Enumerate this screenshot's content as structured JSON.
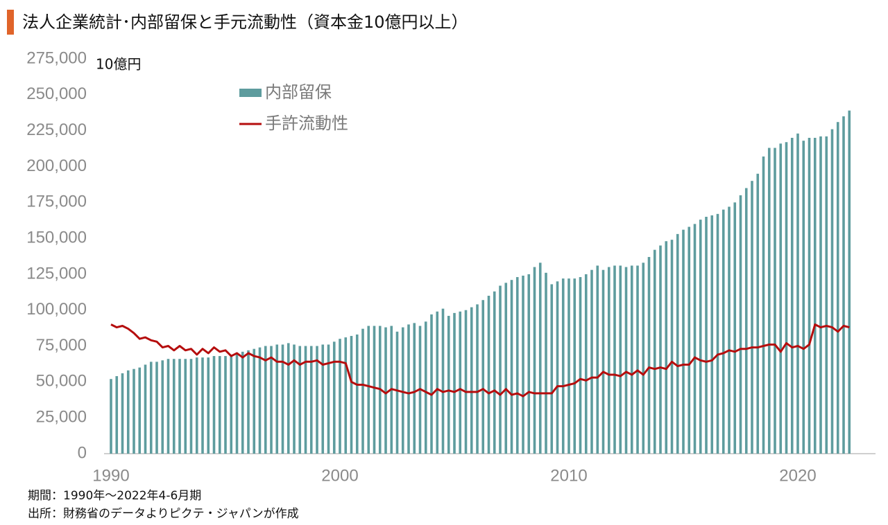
{
  "chart_data": {
    "type": "bar_line",
    "title": "法人企業統計･内部留保と手元流動性（資本金10億円以上）",
    "unit_label": "10億円",
    "notes": [
      "期間：1990年～2022年4-6月期",
      "出所：財務省のデータよりピクテ・ジャパンが作成"
    ],
    "categories": [
      "1990",
      null,
      null,
      null,
      null,
      null,
      null,
      null,
      null,
      null,
      null,
      null,
      null,
      null,
      null,
      null,
      null,
      null,
      null,
      null,
      null,
      null,
      null,
      null,
      null,
      null,
      null,
      null,
      null,
      null,
      null,
      null,
      null,
      null,
      null,
      null,
      null,
      null,
      null,
      null,
      "2000",
      null,
      null,
      null,
      null,
      null,
      null,
      null,
      null,
      null,
      null,
      null,
      null,
      null,
      null,
      null,
      null,
      null,
      null,
      null,
      null,
      null,
      null,
      null,
      null,
      null,
      null,
      null,
      null,
      null,
      null,
      null,
      null,
      null,
      null,
      null,
      null,
      null,
      null,
      null,
      "2010",
      null,
      null,
      null,
      null,
      null,
      null,
      null,
      null,
      null,
      null,
      null,
      null,
      null,
      null,
      null,
      null,
      null,
      null,
      null,
      null,
      null,
      null,
      null,
      null,
      null,
      null,
      null,
      null,
      null,
      null,
      null,
      null,
      null,
      null,
      null,
      null,
      null,
      null,
      null,
      "2020",
      null,
      null,
      null,
      null,
      null,
      null,
      null,
      null,
      null
    ],
    "series": [
      {
        "name": "内部留保",
        "type": "bar",
        "color": "#5e9c9e",
        "values": [
          52000,
          54000,
          56000,
          58000,
          59000,
          60000,
          62000,
          64000,
          64000,
          65000,
          66000,
          66000,
          66000,
          66000,
          66000,
          67000,
          67000,
          67000,
          68000,
          68000,
          68000,
          69000,
          70000,
          71000,
          72000,
          73000,
          74000,
          75000,
          75000,
          76000,
          76000,
          77000,
          76000,
          75000,
          75000,
          75000,
          75000,
          76000,
          76000,
          78000,
          80000,
          81000,
          82000,
          83000,
          87000,
          89000,
          89000,
          89000,
          88000,
          89000,
          85000,
          88000,
          90000,
          91000,
          89000,
          92000,
          97000,
          99000,
          101000,
          96000,
          98000,
          99000,
          100000,
          102000,
          104000,
          107000,
          110000,
          113000,
          117000,
          119000,
          121000,
          123000,
          124000,
          125000,
          130000,
          133000,
          126000,
          118000,
          120000,
          122000,
          122000,
          122000,
          123000,
          125000,
          128000,
          131000,
          128000,
          130000,
          131000,
          131000,
          130000,
          131000,
          131000,
          133000,
          137000,
          142000,
          145000,
          148000,
          149000,
          153000,
          156000,
          158000,
          160000,
          163000,
          165000,
          166000,
          167000,
          170000,
          172000,
          175000,
          180000,
          185000,
          190000,
          195000,
          207000,
          213000,
          213000,
          216000,
          217000,
          220000,
          223000,
          218000,
          220000,
          220000,
          221000,
          221000,
          226000,
          231000,
          235000,
          239000
        ]
      },
      {
        "name": "手許流動性",
        "type": "line",
        "color": "#b50d0d",
        "values": [
          90000,
          88000,
          89000,
          87000,
          84000,
          80000,
          81000,
          79000,
          78000,
          74000,
          75000,
          72000,
          75000,
          72000,
          73000,
          69000,
          73000,
          70000,
          74000,
          71000,
          72000,
          68000,
          70000,
          67000,
          70000,
          68000,
          67000,
          65000,
          67000,
          64000,
          64000,
          62000,
          65000,
          62000,
          64000,
          64000,
          65000,
          62000,
          63000,
          64000,
          64000,
          63000,
          50000,
          48000,
          48000,
          47000,
          46000,
          45000,
          42000,
          45000,
          44000,
          43000,
          42000,
          43000,
          45000,
          43000,
          41000,
          45000,
          43000,
          44000,
          43000,
          45000,
          43000,
          43000,
          43000,
          45000,
          42000,
          44000,
          41000,
          45000,
          41000,
          42000,
          40000,
          43000,
          42000,
          42000,
          42000,
          42000,
          47000,
          47000,
          48000,
          49000,
          52000,
          51000,
          53000,
          53000,
          57000,
          55000,
          55000,
          54000,
          57000,
          55000,
          58000,
          55000,
          60000,
          59000,
          60000,
          59000,
          64000,
          61000,
          62000,
          62000,
          67000,
          65000,
          64000,
          65000,
          69000,
          70000,
          72000,
          71000,
          73000,
          73000,
          74000,
          74000,
          75000,
          76000,
          76000,
          71000,
          77000,
          74000,
          75000,
          73000,
          76000,
          90000,
          88000,
          89000,
          88000,
          85000,
          89000,
          88000
        ]
      }
    ],
    "ylim": [
      0,
      275000
    ],
    "yticks": [
      0,
      {
        "value": 25000,
        "label": "25,000"
      },
      {
        "value": 50000,
        "label": "50,000"
      },
      {
        "value": 75000,
        "label": "75,000"
      },
      {
        "value": 100000,
        "label": "100,000"
      },
      {
        "value": 125000,
        "label": "125,000"
      },
      {
        "value": 150000,
        "label": "150,000"
      },
      {
        "value": 175000,
        "label": "175,000"
      },
      {
        "value": 200000,
        "label": "200,000"
      },
      {
        "value": 225000,
        "label": "225,000"
      },
      {
        "value": 250000,
        "label": "250,000"
      },
      {
        "value": 275000,
        "label": "275,000"
      }
    ]
  }
}
